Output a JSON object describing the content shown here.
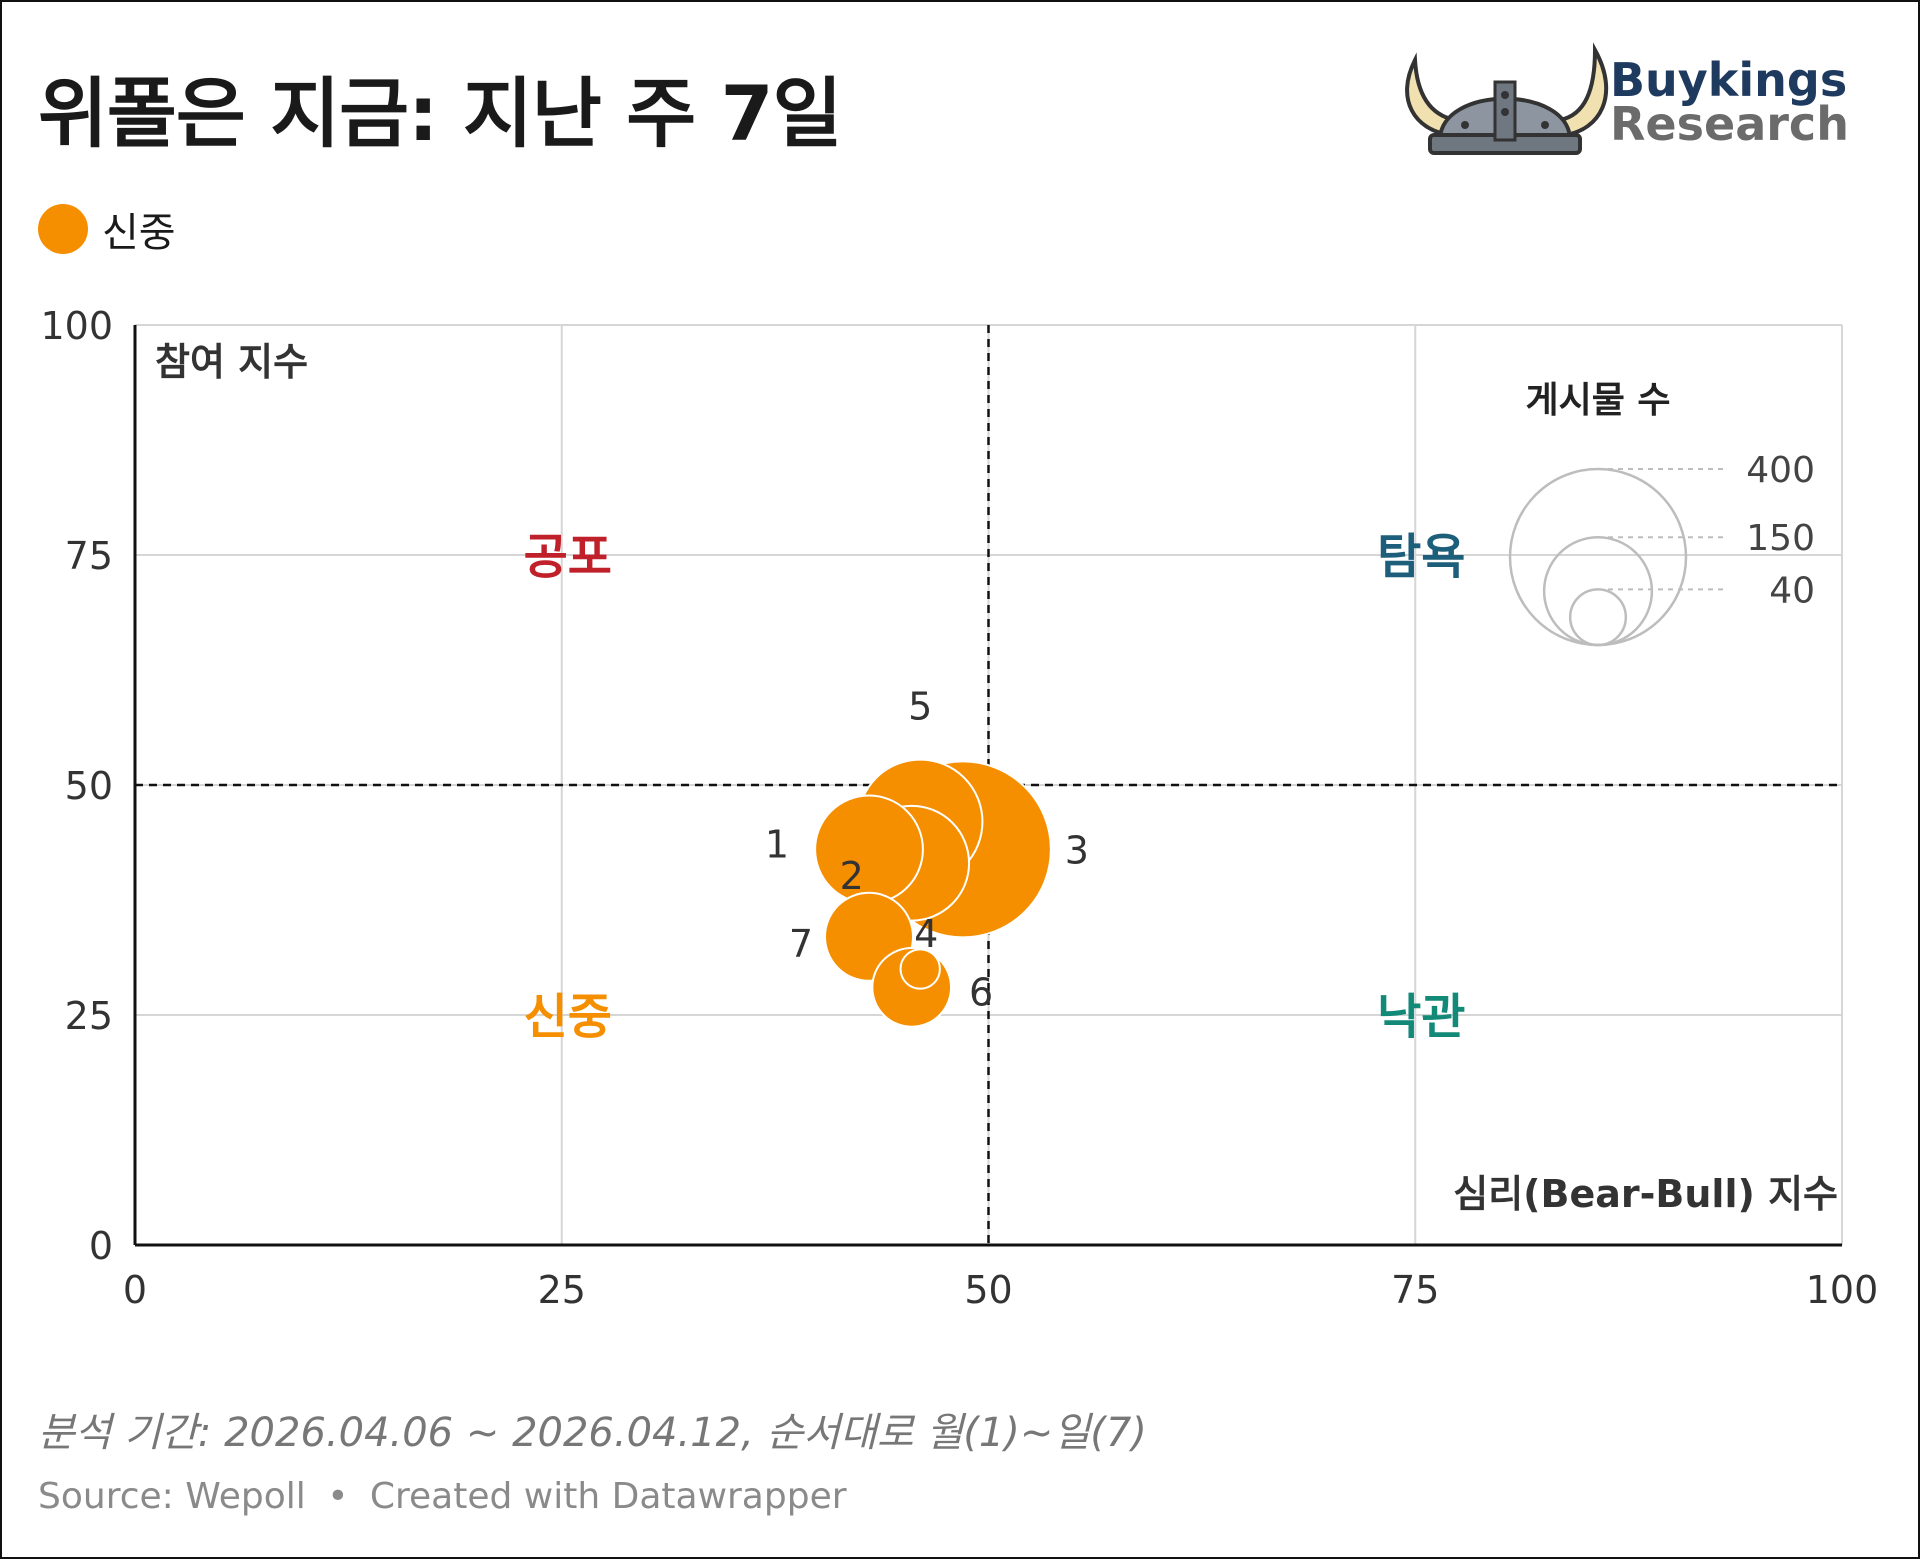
{
  "title": "위폴은 지금: 지난 주 7일",
  "legend": {
    "label": "신중",
    "color": "#f68f00"
  },
  "logo": {
    "line1": "Buykings",
    "line2": "Research"
  },
  "chart_data": {
    "type": "scatter",
    "xlabel": "심리(Bear-Bull) 지수",
    "ylabel": "참여 지수",
    "xlim": [
      0,
      100
    ],
    "ylim": [
      0,
      100
    ],
    "xticks": [
      "0",
      "25",
      "50",
      "75",
      "100"
    ],
    "yticks": [
      "0",
      "25",
      "50",
      "75",
      "100"
    ],
    "grid": true,
    "reference_lines": {
      "x": 50,
      "y": 50
    },
    "quadrants": [
      {
        "label": "공포",
        "x": 25,
        "y": 75,
        "color": "#c0202a"
      },
      {
        "label": "탐욕",
        "x": 75,
        "y": 75,
        "color": "#1d5f7a"
      },
      {
        "label": "신중",
        "x": 25,
        "y": 25,
        "color": "#f68f00"
      },
      {
        "label": "낙관",
        "x": 75,
        "y": 25,
        "color": "#138a78"
      }
    ],
    "size_legend": {
      "title": "게시물 수",
      "values": [
        400,
        150,
        40
      ],
      "placement": "top-right"
    },
    "series": [
      {
        "name": "신중",
        "color": "#f68f00",
        "points": [
          {
            "label": "1",
            "x": 43,
            "y": 43,
            "size": 150
          },
          {
            "label": "2",
            "x": 45.5,
            "y": 41.5,
            "size": 170
          },
          {
            "label": "3",
            "x": 48.5,
            "y": 43,
            "size": 400
          },
          {
            "label": "4",
            "x": 46,
            "y": 30,
            "size": 20
          },
          {
            "label": "5",
            "x": 46,
            "y": 46,
            "size": 200
          },
          {
            "label": "6",
            "x": 45.5,
            "y": 28,
            "size": 80
          },
          {
            "label": "7",
            "x": 43,
            "y": 33.5,
            "size": 100
          }
        ]
      }
    ]
  },
  "footer": {
    "note": "분석 기간: 2026.04.06 ~ 2026.04.12, 순서대로 월(1)~일(7)",
    "source": "Source: Wepoll",
    "credit": "Created with Datawrapper",
    "separator": "•"
  }
}
